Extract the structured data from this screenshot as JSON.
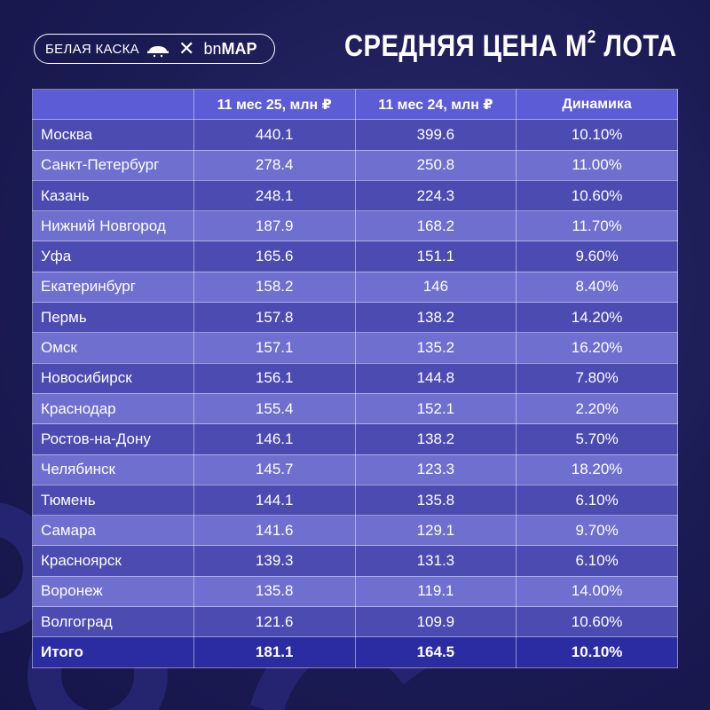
{
  "header": {
    "brand_left": "БЕЛАЯ КАСКА",
    "brand_right_light": "bn",
    "brand_right_bold": "MAP",
    "title_main": "СРЕДНЯЯ ЦЕНА М",
    "title_sup": "2",
    "title_end": " ЛОТА"
  },
  "table": {
    "columns": [
      "",
      "11 мес 25, млн ₽",
      "11 мес 24, млн ₽",
      "Динамика"
    ],
    "rows": [
      [
        "Москва",
        "440.1",
        "399.6",
        "10.10%"
      ],
      [
        "Санкт-Петербург",
        "278.4",
        "250.8",
        "11.00%"
      ],
      [
        "Казань",
        "248.1",
        "224.3",
        "10.60%"
      ],
      [
        "Нижний Новгород",
        "187.9",
        "168.2",
        "11.70%"
      ],
      [
        "Уфа",
        "165.6",
        "151.1",
        "9.60%"
      ],
      [
        "Екатеринбург",
        "158.2",
        "146",
        "8.40%"
      ],
      [
        "Пермь",
        "157.8",
        "138.2",
        "14.20%"
      ],
      [
        "Омск",
        "157.1",
        "135.2",
        "16.20%"
      ],
      [
        "Новосибирск",
        "156.1",
        "144.8",
        "7.80%"
      ],
      [
        "Краснодар",
        "155.4",
        "152.1",
        "2.20%"
      ],
      [
        "Ростов-на-Дону",
        "146.1",
        "138.2",
        "5.70%"
      ],
      [
        "Челябинск",
        "145.7",
        "123.3",
        "18.20%"
      ],
      [
        "Тюмень",
        "144.1",
        "135.8",
        "6.10%"
      ],
      [
        "Самара",
        "141.6",
        "129.1",
        "9.70%"
      ],
      [
        "Красноярск",
        "139.3",
        "131.3",
        "6.10%"
      ],
      [
        "Воронеж",
        "135.8",
        "119.1",
        "14.00%"
      ],
      [
        "Волгоград",
        "121.6",
        "109.9",
        "10.60%"
      ]
    ],
    "total": [
      "Итого",
      "181.1",
      "164.5",
      "10.10%"
    ]
  }
}
